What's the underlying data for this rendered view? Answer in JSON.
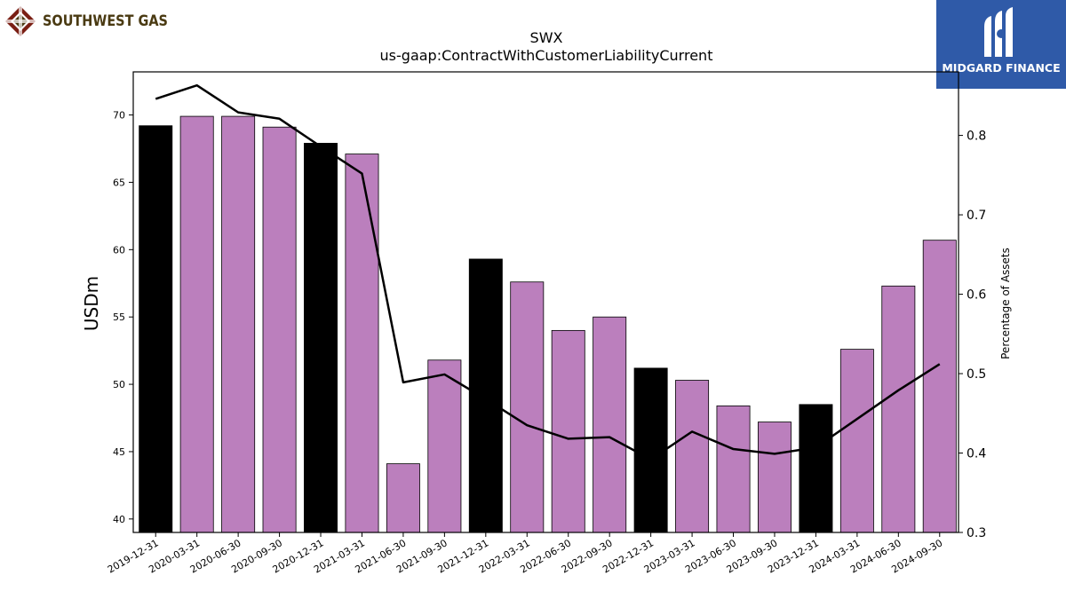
{
  "logos": {
    "left_text": "SOUTHWEST GAS",
    "right_text": "MIDGARD FINANCE"
  },
  "chart_data": {
    "type": "bar",
    "title": "SWX",
    "subtitle": "us-gaap:ContractWithCustomerLiabilityCurrent",
    "ylabel": "USDm",
    "y2label": "Percentage of Assets",
    "ylim": [
      39,
      73.2
    ],
    "y2lim": [
      0.3,
      0.88
    ],
    "yticks": [
      40,
      45,
      50,
      55,
      60,
      65,
      70
    ],
    "y2ticks": [
      0.3,
      0.4,
      0.5,
      0.6,
      0.7,
      0.8
    ],
    "categories": [
      "2019-12-31",
      "2020-03-31",
      "2020-06-30",
      "2020-09-30",
      "2020-12-31",
      "2021-03-31",
      "2021-06-30",
      "2021-09-30",
      "2021-12-31",
      "2022-03-31",
      "2022-06-30",
      "2022-09-30",
      "2022-12-31",
      "2023-03-31",
      "2023-06-30",
      "2023-09-30",
      "2023-12-31",
      "2024-03-31",
      "2024-06-30",
      "2024-09-30"
    ],
    "series": [
      {
        "values": [
          69.2,
          69.9,
          69.9,
          69.1,
          67.9,
          67.1,
          44.1,
          51.8,
          59.3,
          57.6,
          54.0,
          55.0,
          51.2,
          50.3,
          48.4,
          47.2,
          48.5,
          52.6,
          57.3,
          60.7
        ],
        "axis": "left"
      },
      {
        "values": [
          0.846,
          0.863,
          0.829,
          0.821,
          0.786,
          0.752,
          0.489,
          0.499,
          0.468,
          0.435,
          0.418,
          0.42,
          0.392,
          0.427,
          0.405,
          0.399,
          0.407,
          0.443,
          0.479,
          0.512
        ],
        "axis": "right"
      }
    ],
    "year_end_flags": [
      true,
      false,
      false,
      false,
      true,
      false,
      false,
      false,
      true,
      false,
      false,
      false,
      true,
      false,
      false,
      false,
      true,
      false,
      false,
      false
    ],
    "colors": {
      "year_end_bar": "#000000",
      "quarter_bar": "#bb7fbd",
      "line": "#000000"
    }
  }
}
